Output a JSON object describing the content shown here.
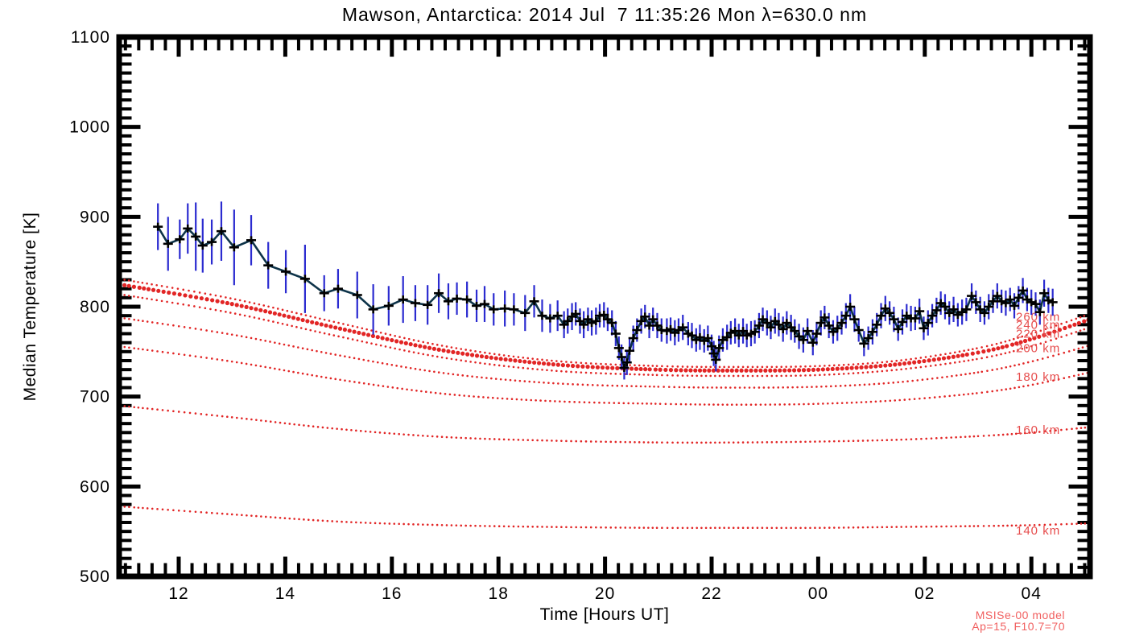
{
  "header": {
    "title": "Mawson, Antarctica: 2014 Jul  7 11:35:26 Mon λ=630.0 nm"
  },
  "chart_data": {
    "type": "line",
    "title": "Mawson, Antarctica: 2014 Jul  7 11:35:26 Mon λ=630.0 nm",
    "xlabel": "Time [Hours UT]",
    "ylabel": "Median Temperature [K]",
    "xlim": [
      10.88,
      29.1
    ],
    "ylim": [
      500,
      1100
    ],
    "grid": false,
    "x_ticks": [
      {
        "value": 12,
        "label": "12"
      },
      {
        "value": 14,
        "label": "14"
      },
      {
        "value": 16,
        "label": "16"
      },
      {
        "value": 18,
        "label": "18"
      },
      {
        "value": 20,
        "label": "20"
      },
      {
        "value": 22,
        "label": "22"
      },
      {
        "value": 24,
        "label": "00"
      },
      {
        "value": 26,
        "label": "02"
      },
      {
        "value": 28,
        "label": "04"
      }
    ],
    "y_ticks": [
      {
        "value": 500,
        "label": "500"
      },
      {
        "value": 600,
        "label": "600"
      },
      {
        "value": 700,
        "label": "700"
      },
      {
        "value": 800,
        "label": "800"
      },
      {
        "value": 900,
        "label": "900"
      },
      {
        "value": 1000,
        "label": "1000"
      },
      {
        "value": 1100,
        "label": "1100"
      }
    ],
    "x_minor_step": 0.25,
    "y_minor_step": 10,
    "colors": {
      "axis": "#000000",
      "data_line": "#0d3349",
      "error_bar": "#2b2bd0",
      "marker": "#000000",
      "model_curve": "#e22525",
      "model_label": "#e64c4c",
      "note": "#f16060"
    },
    "measurements": {
      "name": "median airglow temperature",
      "marker": "plus",
      "points_format": [
        "hours_UT(24+=next_day)",
        "temperature_K",
        "error_K"
      ],
      "points": [
        [
          11.61,
          889,
          26
        ],
        [
          11.8,
          870,
          30
        ],
        [
          12.02,
          875,
          22
        ],
        [
          12.17,
          887,
          28
        ],
        [
          12.32,
          878,
          38
        ],
        [
          12.45,
          868,
          30
        ],
        [
          12.62,
          872,
          25
        ],
        [
          12.8,
          884,
          33
        ],
        [
          13.04,
          866,
          42
        ],
        [
          13.36,
          874,
          28
        ],
        [
          13.68,
          846,
          26
        ],
        [
          14.01,
          839,
          24
        ],
        [
          14.37,
          831,
          38
        ],
        [
          14.73,
          815,
          20
        ],
        [
          14.99,
          820,
          22
        ],
        [
          15.35,
          813,
          26
        ],
        [
          15.65,
          797,
          28
        ],
        [
          15.94,
          801,
          22
        ],
        [
          16.21,
          808,
          26
        ],
        [
          16.44,
          804,
          20
        ],
        [
          16.67,
          802,
          22
        ],
        [
          16.88,
          815,
          22
        ],
        [
          17.06,
          806,
          20
        ],
        [
          17.22,
          809,
          18
        ],
        [
          17.41,
          808,
          20
        ],
        [
          17.59,
          801,
          18
        ],
        [
          17.74,
          803,
          20
        ],
        [
          17.91,
          797,
          18
        ],
        [
          18.12,
          798,
          20
        ],
        [
          18.29,
          797,
          18
        ],
        [
          18.5,
          793,
          20
        ],
        [
          18.67,
          806,
          18
        ],
        [
          18.82,
          790,
          18
        ],
        [
          18.97,
          787,
          16
        ],
        [
          19.11,
          790,
          17
        ],
        [
          19.23,
          780,
          15
        ],
        [
          19.3,
          784,
          14
        ],
        [
          19.38,
          789,
          15
        ],
        [
          19.45,
          792,
          13
        ],
        [
          19.53,
          784,
          14
        ],
        [
          19.6,
          780,
          15
        ],
        [
          19.68,
          786,
          13
        ],
        [
          19.75,
          782,
          14
        ],
        [
          19.83,
          784,
          15
        ],
        [
          19.9,
          790,
          13
        ],
        [
          19.98,
          791,
          14
        ],
        [
          20.05,
          786,
          13
        ],
        [
          20.13,
          782,
          14
        ],
        [
          20.2,
          770,
          14
        ],
        [
          20.26,
          754,
          13
        ],
        [
          20.31,
          744,
          14
        ],
        [
          20.36,
          732,
          13
        ],
        [
          20.41,
          738,
          14
        ],
        [
          20.46,
          751,
          13
        ],
        [
          20.53,
          765,
          14
        ],
        [
          20.6,
          774,
          13
        ],
        [
          20.68,
          784,
          14
        ],
        [
          20.75,
          789,
          13
        ],
        [
          20.83,
          779,
          14
        ],
        [
          20.9,
          786,
          13
        ],
        [
          20.98,
          779,
          14
        ],
        [
          21.06,
          774,
          13
        ],
        [
          21.16,
          773,
          14
        ],
        [
          21.23,
          775,
          13
        ],
        [
          21.31,
          771,
          14
        ],
        [
          21.38,
          774,
          13
        ],
        [
          21.46,
          777,
          14
        ],
        [
          21.56,
          770,
          13
        ],
        [
          21.63,
          768,
          14
        ],
        [
          21.71,
          763,
          13
        ],
        [
          21.78,
          766,
          14
        ],
        [
          21.86,
          762,
          13
        ],
        [
          21.93,
          765,
          14
        ],
        [
          22.0,
          756,
          13
        ],
        [
          22.04,
          748,
          14
        ],
        [
          22.08,
          741,
          13
        ],
        [
          22.14,
          754,
          14
        ],
        [
          22.21,
          763,
          13
        ],
        [
          22.29,
          766,
          14
        ],
        [
          22.36,
          771,
          13
        ],
        [
          22.44,
          773,
          14
        ],
        [
          22.51,
          768,
          13
        ],
        [
          22.59,
          773,
          14
        ],
        [
          22.66,
          768,
          13
        ],
        [
          22.74,
          770,
          14
        ],
        [
          22.81,
          772,
          13
        ],
        [
          22.89,
          779,
          14
        ],
        [
          22.96,
          786,
          13
        ],
        [
          23.04,
          782,
          14
        ],
        [
          23.11,
          777,
          13
        ],
        [
          23.19,
          784,
          14
        ],
        [
          23.26,
          780,
          13
        ],
        [
          23.34,
          775,
          14
        ],
        [
          23.41,
          782,
          13
        ],
        [
          23.49,
          777,
          14
        ],
        [
          23.56,
          773,
          13
        ],
        [
          23.64,
          767,
          14
        ],
        [
          23.72,
          763,
          14
        ],
        [
          23.8,
          773,
          14
        ],
        [
          23.9,
          760,
          14
        ],
        [
          23.97,
          770,
          13
        ],
        [
          24.05,
          782,
          14
        ],
        [
          24.12,
          788,
          13
        ],
        [
          24.2,
          779,
          14
        ],
        [
          24.28,
          772,
          13
        ],
        [
          24.36,
          776,
          14
        ],
        [
          24.44,
          782,
          13
        ],
        [
          24.52,
          790,
          14
        ],
        [
          24.6,
          800,
          14
        ],
        [
          24.68,
          786,
          14
        ],
        [
          24.76,
          774,
          13
        ],
        [
          24.86,
          759,
          14
        ],
        [
          24.94,
          765,
          13
        ],
        [
          25.02,
          772,
          14
        ],
        [
          25.1,
          780,
          13
        ],
        [
          25.18,
          790,
          14
        ],
        [
          25.26,
          798,
          14
        ],
        [
          25.34,
          793,
          13
        ],
        [
          25.42,
          786,
          14
        ],
        [
          25.5,
          775,
          13
        ],
        [
          25.58,
          783,
          14
        ],
        [
          25.66,
          790,
          13
        ],
        [
          25.74,
          787,
          14
        ],
        [
          25.82,
          787,
          13
        ],
        [
          25.9,
          795,
          14
        ],
        [
          25.98,
          776,
          13
        ],
        [
          26.06,
          782,
          14
        ],
        [
          26.14,
          790,
          13
        ],
        [
          26.22,
          796,
          14
        ],
        [
          26.3,
          804,
          13
        ],
        [
          26.38,
          800,
          14
        ],
        [
          26.46,
          793,
          13
        ],
        [
          26.54,
          797,
          14
        ],
        [
          26.62,
          791,
          13
        ],
        [
          26.7,
          794,
          14
        ],
        [
          26.78,
          797,
          13
        ],
        [
          26.88,
          812,
          14
        ],
        [
          26.96,
          805,
          13
        ],
        [
          27.04,
          797,
          14
        ],
        [
          27.12,
          793,
          13
        ],
        [
          27.2,
          800,
          14
        ],
        [
          27.28,
          806,
          13
        ],
        [
          27.36,
          812,
          14
        ],
        [
          27.44,
          806,
          13
        ],
        [
          27.52,
          804,
          14
        ],
        [
          27.6,
          808,
          13
        ],
        [
          27.68,
          801,
          14
        ],
        [
          27.76,
          810,
          13
        ],
        [
          27.84,
          818,
          14
        ],
        [
          27.92,
          808,
          13
        ],
        [
          28.0,
          805,
          14
        ],
        [
          28.08,
          803,
          13
        ],
        [
          28.16,
          794,
          14
        ],
        [
          28.24,
          815,
          15
        ],
        [
          28.32,
          807,
          14
        ],
        [
          28.4,
          805,
          15
        ]
      ]
    },
    "model_curves": [
      {
        "label": "260 km",
        "label_temp": 789,
        "thick": false,
        "points": [
          [
            10.88,
            831
          ],
          [
            13,
            809
          ],
          [
            15,
            782
          ],
          [
            17,
            756
          ],
          [
            19,
            740
          ],
          [
            21,
            734
          ],
          [
            22.5,
            733
          ],
          [
            24,
            734
          ],
          [
            25.5,
            740
          ],
          [
            27,
            754
          ],
          [
            28,
            770
          ],
          [
            29.1,
            792
          ]
        ]
      },
      {
        "label": "240 km",
        "label_temp": 780,
        "thick": true,
        "points": [
          [
            10.88,
            825
          ],
          [
            13,
            803
          ],
          [
            15,
            776
          ],
          [
            17,
            751
          ],
          [
            19,
            736
          ],
          [
            21,
            730
          ],
          [
            22.5,
            729
          ],
          [
            24,
            730
          ],
          [
            25.5,
            736
          ],
          [
            27,
            749
          ],
          [
            28,
            764
          ],
          [
            29.1,
            786
          ]
        ]
      },
      {
        "label": "220 km",
        "label_temp": 770,
        "thick": false,
        "points": [
          [
            10.88,
            814
          ],
          [
            13,
            793
          ],
          [
            15,
            767
          ],
          [
            17,
            743
          ],
          [
            19,
            729
          ],
          [
            21,
            724
          ],
          [
            22.5,
            723
          ],
          [
            24,
            724
          ],
          [
            25.5,
            730
          ],
          [
            27,
            742
          ],
          [
            28,
            756
          ],
          [
            29.1,
            777
          ]
        ]
      },
      {
        "label": "200 km",
        "label_temp": 754,
        "thick": false,
        "points": [
          [
            10.88,
            788
          ],
          [
            13,
            769
          ],
          [
            15,
            746
          ],
          [
            17,
            726
          ],
          [
            19,
            715
          ],
          [
            21,
            711
          ],
          [
            22.5,
            710
          ],
          [
            24,
            711
          ],
          [
            25.5,
            716
          ],
          [
            27,
            727
          ],
          [
            28,
            739
          ],
          [
            29.1,
            757
          ]
        ]
      },
      {
        "label": "180 km",
        "label_temp": 722,
        "thick": false,
        "points": [
          [
            10.88,
            756
          ],
          [
            13,
            739
          ],
          [
            15,
            719
          ],
          [
            17,
            703
          ],
          [
            19,
            695
          ],
          [
            21,
            692
          ],
          [
            22.5,
            691
          ],
          [
            24,
            692
          ],
          [
            25.5,
            696
          ],
          [
            27,
            704
          ],
          [
            28,
            713
          ],
          [
            29.1,
            727
          ]
        ]
      },
      {
        "label": "160 km",
        "label_temp": 663,
        "thick": false,
        "points": [
          [
            10.88,
            690
          ],
          [
            13,
            677
          ],
          [
            15,
            664
          ],
          [
            17,
            655
          ],
          [
            19,
            651
          ],
          [
            21,
            649
          ],
          [
            22.5,
            649
          ],
          [
            24,
            650
          ],
          [
            25.5,
            652
          ],
          [
            27,
            656
          ],
          [
            28,
            660
          ],
          [
            29.1,
            666
          ]
        ]
      },
      {
        "label": "140 km",
        "label_temp": 551,
        "thick": false,
        "points": [
          [
            10.88,
            578
          ],
          [
            13,
            569
          ],
          [
            15,
            561
          ],
          [
            17,
            557
          ],
          [
            19,
            555
          ],
          [
            21,
            554
          ],
          [
            22.5,
            554
          ],
          [
            24,
            554
          ],
          [
            25.5,
            555
          ],
          [
            27,
            556
          ],
          [
            28,
            557
          ],
          [
            29.1,
            559
          ]
        ]
      }
    ],
    "legend_note": [
      "MSISe-00 model",
      "Ap=15, F10.7=70"
    ]
  }
}
